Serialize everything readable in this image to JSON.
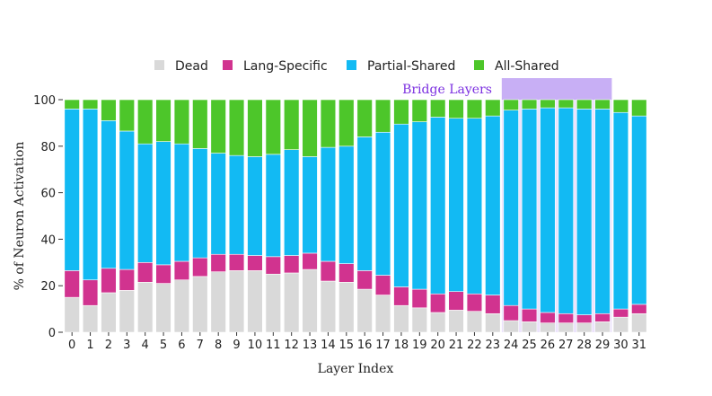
{
  "chart_data": {
    "type": "bar",
    "stacked": true,
    "title": "",
    "xlabel": "Layer Index",
    "ylabel": "% of Neuron Activation",
    "ylim": [
      0,
      100
    ],
    "yticks": [
      0,
      20,
      40,
      60,
      80,
      100
    ],
    "categories": [
      "0",
      "1",
      "2",
      "3",
      "4",
      "5",
      "6",
      "7",
      "8",
      "9",
      "10",
      "11",
      "12",
      "13",
      "14",
      "15",
      "16",
      "17",
      "18",
      "19",
      "20",
      "21",
      "22",
      "23",
      "24",
      "25",
      "26",
      "27",
      "28",
      "29",
      "30",
      "31"
    ],
    "series": [
      {
        "name": "Dead",
        "color": "#d9d9d9",
        "values": [
          15,
          11.5,
          17,
          18,
          21.5,
          21,
          22.5,
          24,
          26,
          26.5,
          26.5,
          25,
          25.5,
          27,
          22,
          21.5,
          18.5,
          16,
          11.5,
          10.5,
          8.5,
          9.5,
          9,
          8,
          5,
          4.5,
          4,
          4,
          4,
          4.5,
          6.5,
          8
        ]
      },
      {
        "name": "Lang-Specific",
        "color": "#d1338f",
        "values": [
          11.5,
          11,
          10.5,
          9,
          8.5,
          8,
          8,
          8,
          7.5,
          7,
          6.5,
          7.5,
          7.5,
          7,
          8.5,
          8,
          8,
          8.5,
          8,
          8,
          8,
          8,
          7.5,
          8,
          6.5,
          5.5,
          4.5,
          4,
          3.5,
          3.5,
          3.5,
          4
        ]
      },
      {
        "name": "Partial-Shared",
        "color": "#12baf3",
        "values": [
          69.5,
          73.5,
          63.5,
          59.5,
          51,
          53,
          50.5,
          47,
          43.5,
          42.5,
          42.5,
          44,
          45.5,
          41.5,
          49,
          50.5,
          57.5,
          61.5,
          70,
          72,
          76,
          74.5,
          75.5,
          77,
          84,
          86,
          88,
          88.5,
          88.5,
          88,
          84.5,
          81
        ]
      },
      {
        "name": "All-Shared",
        "color": "#4dc62a",
        "values": [
          4,
          4,
          9,
          13.5,
          19,
          18,
          19,
          21,
          23,
          24,
          24.5,
          23.5,
          21.5,
          24.5,
          20.5,
          20,
          16,
          14,
          10.5,
          9.5,
          7.5,
          8,
          8,
          7,
          4.5,
          4,
          3.5,
          3.5,
          4,
          4,
          5.5,
          7
        ]
      }
    ],
    "legend": {
      "position": "top-center",
      "entries": [
        "Dead",
        "Lang-Specific",
        "Partial-Shared",
        "All-Shared"
      ]
    },
    "annotation": {
      "text": "Bridge Layers",
      "start_layer": 24,
      "end_layer": 29,
      "color": "#c8aff5",
      "text_color": "#7b2fe0"
    }
  }
}
